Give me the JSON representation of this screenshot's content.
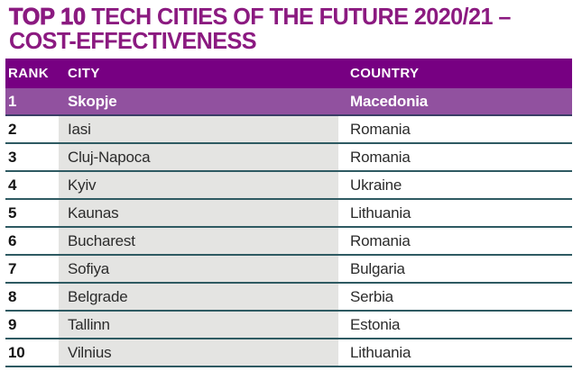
{
  "title": {
    "prefix": "TOP 10",
    "rest": " TECH CITIES OF THE FUTURE 2020/21 –",
    "line2": "COST-EFFECTIVENESS"
  },
  "table": {
    "columns": [
      "RANK",
      "CITY",
      "COUNTRY"
    ],
    "rows": [
      {
        "rank": "1",
        "city": "Skopje",
        "country": "Macedonia",
        "highlight": true
      },
      {
        "rank": "2",
        "city": "Iasi",
        "country": "Romania",
        "highlight": false
      },
      {
        "rank": "3",
        "city": "Cluj-Napoca",
        "country": "Romania",
        "highlight": false
      },
      {
        "rank": "4",
        "city": "Kyiv",
        "country": "Ukraine",
        "highlight": false
      },
      {
        "rank": "5",
        "city": "Kaunas",
        "country": "Lithuania",
        "highlight": false
      },
      {
        "rank": "6",
        "city": "Bucharest",
        "country": "Romania",
        "highlight": false
      },
      {
        "rank": "7",
        "city": "Sofiya",
        "country": "Bulgaria",
        "highlight": false
      },
      {
        "rank": "8",
        "city": "Belgrade",
        "country": "Serbia",
        "highlight": false
      },
      {
        "rank": "9",
        "city": "Tallinn",
        "country": "Estonia",
        "highlight": false
      },
      {
        "rank": "10",
        "city": "Vilnius",
        "country": "Lithuania",
        "highlight": false
      }
    ]
  },
  "colors": {
    "title_color": "#8b1a80",
    "header_bg": "#770082",
    "highlight_bg": "#91519f",
    "band": "#e4e4e2",
    "separator": "#2e5a62",
    "highlight_separator": "#3a3e66",
    "text_color": "#2b2b2b"
  },
  "chart_data": {
    "type": "table",
    "title": "TOP 10 TECH CITIES OF THE FUTURE 2020/21 – COST-EFFECTIVENESS",
    "columns": [
      "RANK",
      "CITY",
      "COUNTRY"
    ],
    "rows": [
      [
        "1",
        "Skopje",
        "Macedonia"
      ],
      [
        "2",
        "Iasi",
        "Romania"
      ],
      [
        "3",
        "Cluj-Napoca",
        "Romania"
      ],
      [
        "4",
        "Kyiv",
        "Ukraine"
      ],
      [
        "5",
        "Kaunas",
        "Lithuania"
      ],
      [
        "6",
        "Bucharest",
        "Romania"
      ],
      [
        "7",
        "Sofiya",
        "Bulgaria"
      ],
      [
        "8",
        "Belgrade",
        "Serbia"
      ],
      [
        "9",
        "Tallinn",
        "Estonia"
      ],
      [
        "10",
        "Vilnius",
        "Lithuania"
      ]
    ]
  }
}
